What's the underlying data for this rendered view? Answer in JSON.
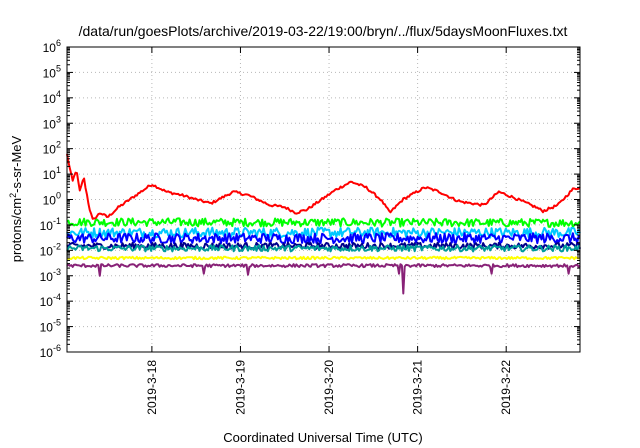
{
  "chart_data": {
    "type": "line",
    "title": "/data/run/goesPlots/archive/2019-03-22/19:00/bryn/../flux/5daysMoonFluxes.txt",
    "xlabel": "Coordinated Universal Time (UTC)",
    "ylabel_parts": [
      "protons/cm",
      "2",
      "-s-sr-MeV"
    ],
    "yscale": "log",
    "ylim": [
      1e-06,
      1000000.0
    ],
    "xlim": [
      "2019-03-17T01:00",
      "2019-03-22T20:00"
    ],
    "grid": true,
    "y_ticks": [
      {
        "value": 1e-06,
        "base": "10",
        "exp": "-6"
      },
      {
        "value": 1e-05,
        "base": "10",
        "exp": "-5"
      },
      {
        "value": 0.0001,
        "base": "10",
        "exp": "-4"
      },
      {
        "value": 0.001,
        "base": "10",
        "exp": "-3"
      },
      {
        "value": 0.01,
        "base": "10",
        "exp": "-2"
      },
      {
        "value": 0.1,
        "base": "10",
        "exp": "-1"
      },
      {
        "value": 1,
        "base": "10",
        "exp": "0"
      },
      {
        "value": 10.0,
        "base": "10",
        "exp": "1"
      },
      {
        "value": 100.0,
        "base": "10",
        "exp": "2"
      },
      {
        "value": 1000.0,
        "base": "10",
        "exp": "3"
      },
      {
        "value": 10000.0,
        "base": "10",
        "exp": "4"
      },
      {
        "value": 100000.0,
        "base": "10",
        "exp": "5"
      },
      {
        "value": 1000000.0,
        "base": "10",
        "exp": "6"
      }
    ],
    "x_ticks": [
      {
        "label": "2019-3-18",
        "value": "2019-03-18T00:00"
      },
      {
        "label": "2019-3-19",
        "value": "2019-03-19T00:00"
      },
      {
        "label": "2019-3-20",
        "value": "2019-03-20T00:00"
      },
      {
        "label": "2019-3-21",
        "value": "2019-03-21T00:00"
      },
      {
        "label": "2019-3-22",
        "value": "2019-03-22T00:00"
      }
    ],
    "series": [
      {
        "color": "#ff0000",
        "noise": 0.05,
        "spikes": [],
        "points": [
          [
            "2019-03-17T01:00",
            60
          ],
          [
            "2019-03-17T02:30",
            5
          ],
          [
            "2019-03-17T03:30",
            15
          ],
          [
            "2019-03-17T04:30",
            2
          ],
          [
            "2019-03-17T05:30",
            8
          ],
          [
            "2019-03-17T07:00",
            0.5
          ],
          [
            "2019-03-17T08:00",
            0.15
          ],
          [
            "2019-03-17T10:00",
            0.3
          ],
          [
            "2019-03-17T12:00",
            0.2
          ],
          [
            "2019-03-17T15:00",
            0.5
          ],
          [
            "2019-03-17T18:00",
            1
          ],
          [
            "2019-03-18T00:00",
            4
          ],
          [
            "2019-03-18T04:00",
            2
          ],
          [
            "2019-03-18T08:00",
            1.5
          ],
          [
            "2019-03-18T12:00",
            1
          ],
          [
            "2019-03-18T16:00",
            0.7
          ],
          [
            "2019-03-18T22:00",
            2
          ],
          [
            "2019-03-19T02:00",
            1.5
          ],
          [
            "2019-03-19T08:00",
            0.6
          ],
          [
            "2019-03-19T12:00",
            0.5
          ],
          [
            "2019-03-19T15:00",
            0.3
          ],
          [
            "2019-03-19T18:00",
            0.4
          ],
          [
            "2019-03-19T22:00",
            1
          ],
          [
            "2019-03-20T02:00",
            2.5
          ],
          [
            "2019-03-20T06:00",
            5
          ],
          [
            "2019-03-20T10:00",
            3
          ],
          [
            "2019-03-20T14:00",
            1
          ],
          [
            "2019-03-20T16:30",
            0.3
          ],
          [
            "2019-03-20T20:00",
            1
          ],
          [
            "2019-03-21T02:00",
            3
          ],
          [
            "2019-03-21T06:00",
            2
          ],
          [
            "2019-03-21T10:00",
            1
          ],
          [
            "2019-03-21T12:00",
            0.8
          ],
          [
            "2019-03-21T18:00",
            0.6
          ],
          [
            "2019-03-21T22:00",
            2
          ],
          [
            "2019-03-22T02:00",
            1.2
          ],
          [
            "2019-03-22T08:00",
            0.5
          ],
          [
            "2019-03-22T10:00",
            0.35
          ],
          [
            "2019-03-22T14:00",
            0.6
          ],
          [
            "2019-03-22T18:00",
            2.5
          ],
          [
            "2019-03-22T20:00",
            3
          ]
        ]
      },
      {
        "color": "#00ff00",
        "noise": 0.16,
        "spikes": [],
        "points": [
          [
            "2019-03-17T01:00",
            0.13
          ],
          [
            "2019-03-22T20:00",
            0.12
          ]
        ]
      },
      {
        "color": "#00c8ff",
        "noise": 0.2,
        "spikes": [],
        "points": [
          [
            "2019-03-17T01:00",
            0.05
          ],
          [
            "2019-03-22T20:00",
            0.05
          ]
        ]
      },
      {
        "color": "#0000ff",
        "noise": 0.2,
        "spikes": [],
        "points": [
          [
            "2019-03-17T01:00",
            0.03
          ],
          [
            "2019-03-22T20:00",
            0.03
          ]
        ]
      },
      {
        "color": "#00008b",
        "noise": 0.12,
        "spikes": [],
        "points": [
          [
            "2019-03-17T01:00",
            0.015
          ],
          [
            "2019-03-22T20:00",
            0.015
          ]
        ]
      },
      {
        "color": "#009b9b",
        "noise": 0.12,
        "spikes": [],
        "points": [
          [
            "2019-03-17T01:00",
            0.012
          ],
          [
            "2019-03-22T20:00",
            0.012
          ]
        ]
      },
      {
        "color": "#ffff00",
        "noise": 0.05,
        "spikes": [],
        "points": [
          [
            "2019-03-17T01:00",
            0.005
          ],
          [
            "2019-03-22T20:00",
            0.005
          ]
        ]
      },
      {
        "color": "#882277",
        "noise": 0.06,
        "spikes": [
          [
            "2019-03-17T10:00",
            0.001
          ],
          [
            "2019-03-18T14:00",
            0.0012
          ],
          [
            "2019-03-19T02:00",
            0.0011
          ],
          [
            "2019-03-20T19:00",
            0.0012
          ],
          [
            "2019-03-20T20:00",
            0.0002
          ],
          [
            "2019-03-21T20:00",
            0.0012
          ],
          [
            "2019-03-22T17:00",
            0.0012
          ]
        ],
        "points": [
          [
            "2019-03-17T01:00",
            0.0025
          ],
          [
            "2019-03-22T20:00",
            0.0025
          ]
        ]
      }
    ]
  }
}
